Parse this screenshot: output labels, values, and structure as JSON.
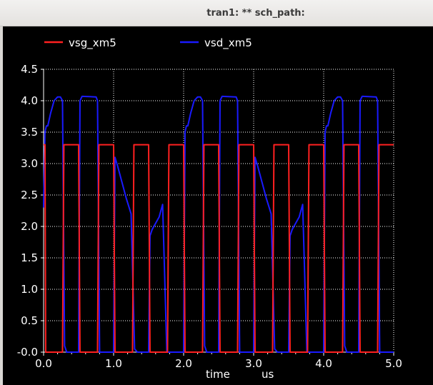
{
  "window": {
    "title": "tran1: ** sch_path:"
  },
  "chart_data": {
    "type": "line",
    "title": "",
    "xlabel": "time",
    "xunit": "us",
    "ylabel": "",
    "xlim": [
      0.0,
      5.0
    ],
    "ylim": [
      0.0,
      4.5
    ],
    "x_ticks": [
      "0.0",
      "1.0",
      "2.0",
      "3.0",
      "4.0",
      "5.0"
    ],
    "y_ticks": [
      "-0.0",
      "0.5",
      "1.0",
      "1.5",
      "2.0",
      "2.5",
      "3.0",
      "3.5",
      "4.0",
      "4.5"
    ],
    "grid": true,
    "legend_position": "top",
    "series": [
      {
        "name": "vsg_xm5",
        "color": "#ff2020",
        "x": [
          0.0,
          0.02,
          0.03,
          0.27,
          0.29,
          0.5,
          0.52,
          0.77,
          0.79,
          1.0,
          1.02,
          1.27,
          1.29,
          1.5,
          1.52,
          1.77,
          1.79,
          2.0,
          2.02,
          2.27,
          2.29,
          2.5,
          2.52,
          2.77,
          2.79,
          3.0,
          3.02,
          3.27,
          3.29,
          3.5,
          3.52,
          3.77,
          3.79,
          4.0,
          4.02,
          4.27,
          4.29,
          4.5,
          4.52,
          4.77,
          4.79,
          5.0
        ],
        "y": [
          3.3,
          3.3,
          0.0,
          0.0,
          3.3,
          3.3,
          0.0,
          0.0,
          3.3,
          3.3,
          0.0,
          0.0,
          3.3,
          3.3,
          0.0,
          0.0,
          3.3,
          3.3,
          0.0,
          0.0,
          3.3,
          3.3,
          0.0,
          0.0,
          3.3,
          3.3,
          0.0,
          0.0,
          3.3,
          3.3,
          0.0,
          0.0,
          3.3,
          3.3,
          0.0,
          0.0,
          3.3,
          3.3,
          0.0,
          0.0,
          3.3,
          3.3
        ]
      },
      {
        "name": "vsd_xm5",
        "color": "#1a1aff",
        "x": [
          0.0,
          0.02,
          0.04,
          0.06,
          0.1,
          0.15,
          0.2,
          0.24,
          0.27,
          0.3,
          0.33,
          0.5,
          0.52,
          0.55,
          0.75,
          0.77,
          0.8,
          1.0,
          1.02,
          1.06,
          1.12,
          1.18,
          1.25,
          1.3,
          1.34,
          1.36,
          1.38,
          1.5,
          1.52,
          1.55,
          1.6,
          1.65,
          1.7,
          1.76,
          2.0,
          2.02,
          2.04,
          2.06,
          2.1,
          2.15,
          2.2,
          2.24,
          2.27,
          2.3,
          2.33,
          2.5,
          2.52,
          2.55,
          2.75,
          2.77,
          2.8,
          3.0,
          3.02,
          3.06,
          3.12,
          3.18,
          3.25,
          3.3,
          3.34,
          3.36,
          3.38,
          3.5,
          3.52,
          3.55,
          3.6,
          3.65,
          3.7,
          3.76,
          4.0,
          4.02,
          4.04,
          4.06,
          4.1,
          4.15,
          4.2,
          4.24,
          4.27,
          4.3,
          4.33,
          4.5,
          4.52,
          4.55,
          4.75,
          4.77,
          4.8,
          5.0
        ],
        "y": [
          2.3,
          3.5,
          3.6,
          3.6,
          3.8,
          4.0,
          4.06,
          4.06,
          4.0,
          0.1,
          0.0,
          0.0,
          4.0,
          4.07,
          4.06,
          4.0,
          0.0,
          0.0,
          3.1,
          2.95,
          2.7,
          2.45,
          2.2,
          0.05,
          0.0,
          0.0,
          0.0,
          0.0,
          1.85,
          1.95,
          2.05,
          2.15,
          2.35,
          0.0,
          0.0,
          3.5,
          3.6,
          3.6,
          3.8,
          4.0,
          4.06,
          4.06,
          4.0,
          0.1,
          0.0,
          0.0,
          4.0,
          4.07,
          4.06,
          4.0,
          0.0,
          0.0,
          3.1,
          2.95,
          2.7,
          2.45,
          2.2,
          0.05,
          0.0,
          0.0,
          0.0,
          0.0,
          1.85,
          1.95,
          2.05,
          2.15,
          2.35,
          0.0,
          0.0,
          3.5,
          3.6,
          3.6,
          3.8,
          4.0,
          4.06,
          4.06,
          4.0,
          0.1,
          0.0,
          0.0,
          4.0,
          4.07,
          4.06,
          4.0,
          0.0,
          0.0
        ]
      }
    ]
  }
}
